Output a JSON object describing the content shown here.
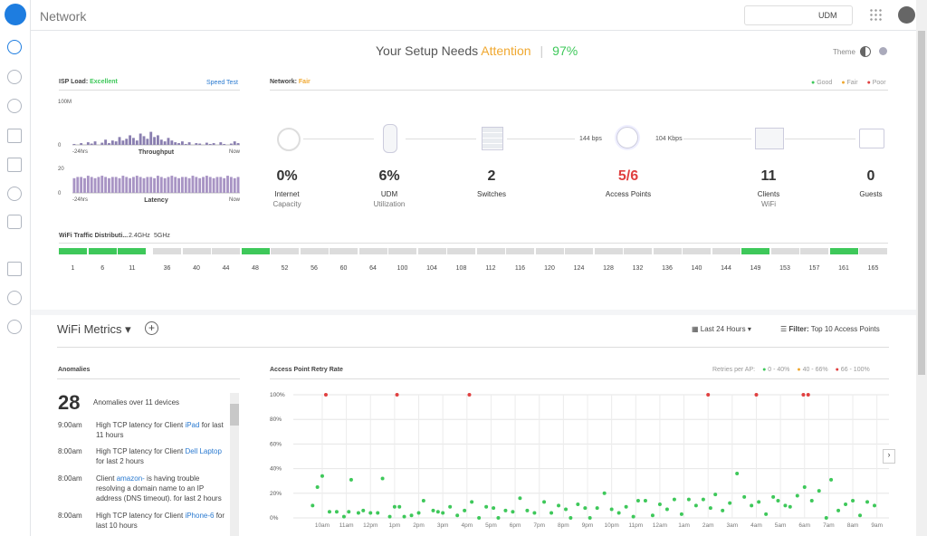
{
  "header": {
    "title": "Network",
    "device": "UDM"
  },
  "setup": {
    "text": "Your Setup Needs",
    "highlight": "Attention",
    "score": "97%",
    "theme": "Theme"
  },
  "isp": {
    "label": "ISP Load:",
    "status": "Excellent",
    "speed_test": "Speed Test"
  },
  "network": {
    "label": "Network:",
    "status": "Fair",
    "legend": [
      "Good",
      "Fair",
      "Poor"
    ],
    "speeds": [
      "144 bps",
      "104 Kbps"
    ],
    "stats": [
      {
        "value": "0%",
        "label": "Internet",
        "sub": "Capacity"
      },
      {
        "value": "6%",
        "label": "UDM",
        "sub": "Utilization"
      },
      {
        "value": "2",
        "label": "Switches"
      },
      {
        "value": "5/6",
        "label": "Access Points"
      },
      {
        "value": "11",
        "label": "Clients",
        "sub": "WiFi"
      },
      {
        "value": "0",
        "label": "Guests"
      }
    ]
  },
  "wifi_traffic": {
    "title": "WiFi Traffic Distributi...",
    "bands": [
      "2.4GHz",
      "5GHz"
    ],
    "channels": [
      1,
      6,
      11,
      36,
      40,
      44,
      48,
      52,
      56,
      60,
      64,
      100,
      104,
      108,
      112,
      116,
      120,
      124,
      128,
      132,
      136,
      140,
      144,
      149,
      153,
      157,
      161,
      165
    ],
    "active": [
      1,
      6,
      11,
      48,
      149,
      161
    ]
  },
  "metrics": {
    "title": "WiFi Metrics",
    "range": "Last 24 Hours",
    "filter_label": "Filter:",
    "filter": "Top 10 Access Points"
  },
  "anomalies": {
    "title": "Anomalies",
    "count": "28",
    "summary": "Anomalies over 11 devices",
    "items": [
      {
        "time": "9:00am",
        "before": "High TCP latency for Client",
        "link": "iPad",
        "after": "for last 11 hours"
      },
      {
        "time": "8:00am",
        "before": "High TCP latency for Client",
        "link": "Dell Laptop",
        "after": "for last 2 hours"
      },
      {
        "time": "8:00am",
        "before": "Client",
        "link": "amazon-",
        "after": "is having trouble resolving a domain name to an IP address (DNS timeout). for last 2 hours"
      },
      {
        "time": "8:00am",
        "before": "High TCP latency for Client",
        "link": "iPhone-6",
        "after": "for last 10 hours"
      }
    ]
  },
  "chart_data": [
    {
      "type": "bar",
      "xlabel": "Throughput",
      "x_labels": [
        "-24hrs",
        "Now"
      ],
      "color": "#8a7fb0",
      "ylim": [
        0,
        100
      ],
      "yticks": [
        0,
        {
          "value": 100,
          "label": "100M"
        }
      ],
      "values": [
        2,
        0,
        4,
        0,
        6,
        3,
        8,
        0,
        5,
        12,
        4,
        10,
        8,
        18,
        10,
        14,
        22,
        16,
        10,
        26,
        20,
        14,
        30,
        18,
        22,
        12,
        8,
        16,
        10,
        6,
        4,
        8,
        2,
        6,
        0,
        4,
        3,
        0,
        5,
        2,
        4,
        0,
        6,
        2,
        0,
        3,
        8,
        4
      ]
    },
    {
      "type": "bar",
      "xlabel": "Latency",
      "x_labels": [
        "-24hrs",
        "Now"
      ],
      "color": "#a894c4",
      "ylim": [
        0,
        20
      ],
      "yticks": [
        0,
        20
      ],
      "values": [
        12,
        13,
        13,
        12,
        14,
        13,
        12,
        13,
        14,
        13,
        12,
        13,
        13,
        12,
        14,
        13,
        12,
        13,
        14,
        13,
        12,
        13,
        13,
        12,
        14,
        13,
        12,
        13,
        14,
        13,
        12,
        13,
        13,
        12,
        14,
        13,
        12,
        13,
        14,
        13,
        12,
        13,
        13,
        12,
        14,
        13,
        12,
        13
      ]
    },
    {
      "type": "scatter",
      "title": "Access Point Retry Rate",
      "legend_title": "Retries per AP:",
      "xlim": [
        -1.2,
        23.5
      ],
      "ylim": [
        0,
        100
      ],
      "xticks": [
        {
          "value": 0,
          "label": "10am"
        },
        {
          "value": 1,
          "label": "11am"
        },
        {
          "value": 2,
          "label": "12pm"
        },
        {
          "value": 3,
          "label": "1pm"
        },
        {
          "value": 4,
          "label": "2pm"
        },
        {
          "value": 5,
          "label": "3pm"
        },
        {
          "value": 6,
          "label": "4pm"
        },
        {
          "value": 7,
          "label": "5pm"
        },
        {
          "value": 8,
          "label": "6pm"
        },
        {
          "value": 9,
          "label": "7pm"
        },
        {
          "value": 10,
          "label": "8pm"
        },
        {
          "value": 11,
          "label": "9pm"
        },
        {
          "value": 12,
          "label": "10pm"
        },
        {
          "value": 13,
          "label": "11pm"
        },
        {
          "value": 14,
          "label": "12am"
        },
        {
          "value": 15,
          "label": "1am"
        },
        {
          "value": 16,
          "label": "2am"
        },
        {
          "value": 17,
          "label": "3am"
        },
        {
          "value": 18,
          "label": "4am"
        },
        {
          "value": 19,
          "label": "5am"
        },
        {
          "value": 20,
          "label": "6am"
        },
        {
          "value": 21,
          "label": "7am"
        },
        {
          "value": 22,
          "label": "8am"
        },
        {
          "value": 23,
          "label": "9am"
        }
      ],
      "yticks": [
        {
          "value": 0,
          "label": "0%"
        },
        {
          "value": 20,
          "label": "20%"
        },
        {
          "value": 40,
          "label": "40%"
        },
        {
          "value": 60,
          "label": "60%"
        },
        {
          "value": 80,
          "label": "80%"
        },
        {
          "value": 100,
          "label": "100%"
        }
      ],
      "grid": true,
      "series": [
        {
          "name": "0 - 40%",
          "color": "#3ec85a",
          "x": [
            -0.4,
            -0.2,
            0,
            0.3,
            0.6,
            0.9,
            1.1,
            1.2,
            1.5,
            1.7,
            2.0,
            2.3,
            2.5,
            2.8,
            3.0,
            3.2,
            3.4,
            3.7,
            4.0,
            4.2,
            4.6,
            4.8,
            5.0,
            5.3,
            5.6,
            5.9,
            6.2,
            6.5,
            6.8,
            7.1,
            7.3,
            7.6,
            7.9,
            8.2,
            8.5,
            8.8,
            9.2,
            9.5,
            9.8,
            10.1,
            10.3,
            10.6,
            10.9,
            11.1,
            11.4,
            11.7,
            12.0,
            12.3,
            12.6,
            12.9,
            13.1,
            13.4,
            13.7,
            14.0,
            14.3,
            14.6,
            14.9,
            15.2,
            15.5,
            15.8,
            16.1,
            16.3,
            16.6,
            16.9,
            17.2,
            17.5,
            17.8,
            18.1,
            18.4,
            18.7,
            18.9,
            19.2,
            19.4,
            19.7,
            20.0,
            20.3,
            20.6,
            20.9,
            21.1,
            21.4,
            21.7,
            22.0,
            22.3,
            22.6,
            22.9
          ],
          "values": [
            10,
            25,
            34,
            5,
            5,
            1,
            5,
            31,
            4,
            6,
            4,
            4,
            32,
            1,
            9,
            9,
            1,
            2,
            4,
            14,
            6,
            5,
            4,
            9,
            2,
            6,
            13,
            0,
            9,
            8,
            0,
            6,
            5,
            16,
            6,
            4,
            13,
            4,
            10,
            7,
            0,
            11,
            8,
            0,
            8,
            20,
            7,
            4,
            9,
            1,
            14,
            14,
            2,
            11,
            7,
            15,
            3,
            15,
            10,
            15,
            8,
            19,
            6,
            12,
            36,
            17,
            10,
            13,
            3,
            17,
            14,
            10,
            9,
            18,
            25,
            14,
            22,
            0,
            31,
            6,
            11,
            14,
            2,
            13,
            10
          ]
        },
        {
          "name": "40 - 66%",
          "color": "#f0a830",
          "x": [],
          "values": []
        },
        {
          "name": "66 - 100%",
          "color": "#e04040",
          "x": [
            0.15,
            3.1,
            6.1,
            16,
            18,
            19.95,
            20.15
          ],
          "values": [
            100,
            100,
            100,
            100,
            100,
            100,
            100
          ]
        }
      ]
    }
  ]
}
